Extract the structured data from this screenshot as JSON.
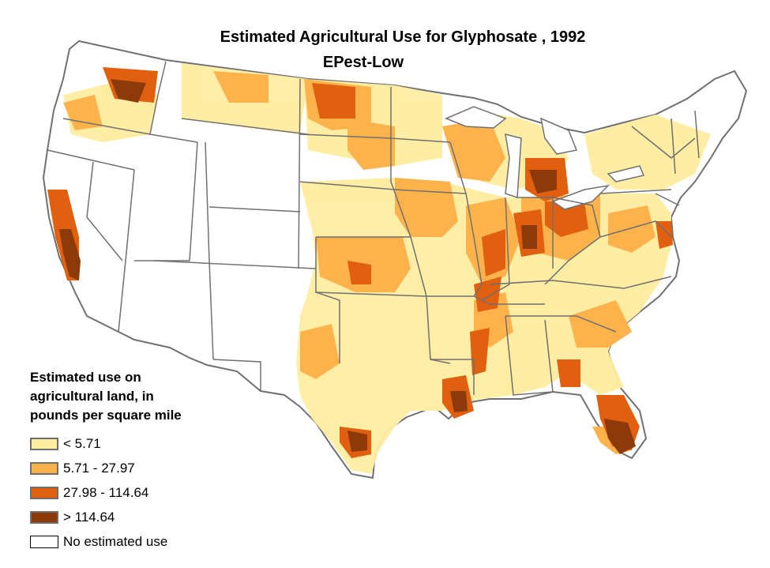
{
  "map": {
    "title": "Estimated Agricultural Use for Glyphosate , 1992",
    "subtitle": "EPest-Low"
  },
  "legend": {
    "title_lines": [
      "Estimated use on",
      "agricultural land, in",
      "pounds per square mile"
    ],
    "items": [
      {
        "label": "< 5.71",
        "color": "#ffeda0"
      },
      {
        "label": "5.71 - 27.97",
        "color": "#feb24c"
      },
      {
        "label": "27.98 - 114.64",
        "color": "#e06010"
      },
      {
        "label": "> 114.64",
        "color": "#8c3a0a"
      },
      {
        "label": "No estimated use",
        "color": "#ffffff"
      }
    ]
  },
  "colors": {
    "state_border": "#707070",
    "class_1": "#ffeda0",
    "class_2": "#feb24c",
    "class_3": "#e06010",
    "class_4": "#8c3a0a"
  }
}
